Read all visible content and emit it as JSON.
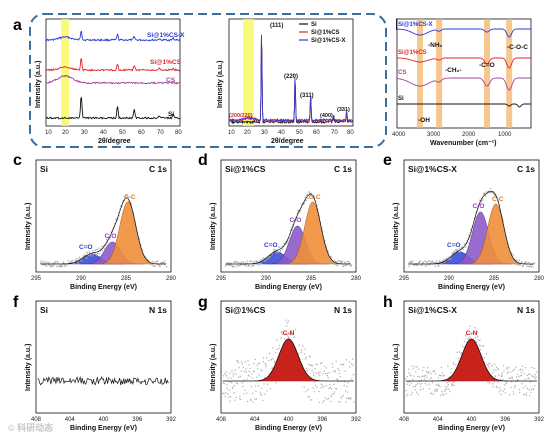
{
  "panels": {
    "a": {
      "label": "a",
      "left": {
        "xlabel": "2θ/degree",
        "ylabel": "Intensity (a.u.)",
        "xlim": [
          10,
          80
        ],
        "xticks": [
          10,
          20,
          30,
          40,
          50,
          60,
          70,
          80
        ],
        "series": [
          {
            "name": "Si@1%CS-X",
            "color": "#2b3bd6"
          },
          {
            "name": "Si@1%CS",
            "color": "#e0262b"
          },
          {
            "name": "CS",
            "color": "#a3449b"
          },
          {
            "name": "Si",
            "color": "#111111"
          }
        ],
        "highlight": [
          18,
          22
        ]
      },
      "right": {
        "xlabel": "2θ/degree",
        "ylabel": "Intensity (a.u.)",
        "xlim": [
          10,
          80
        ],
        "xticks": [
          10,
          20,
          30,
          40,
          50,
          60,
          70,
          80
        ],
        "peaks": [
          "(111)",
          "(220)",
          "(311)",
          "(400)",
          "(331)",
          "(200/220)"
        ],
        "legend": [
          {
            "name": "Si",
            "color": "#111111"
          },
          {
            "name": "Si@1%CS",
            "color": "#e0262b"
          },
          {
            "name": "Si@1%CS-X",
            "color": "#2b3bd6"
          }
        ],
        "highlight": [
          18,
          24
        ]
      }
    },
    "b": {
      "label": "b",
      "xlabel": "Wavenumber (cm⁻¹)",
      "xlim": [
        4000,
        500
      ],
      "xticks": [
        4000,
        3000,
        2000,
        1000
      ],
      "series": [
        {
          "name": "Si@1%CS-X",
          "color": "#2b3bd6"
        },
        {
          "name": "Si@1%CS",
          "color": "#e0262b"
        },
        {
          "name": "CS",
          "color": "#a3449b"
        },
        {
          "name": "Si",
          "color": "#111111"
        }
      ],
      "annotations": [
        "-NH₂",
        "-CH₂-",
        "-C=O",
        "-C-O-C",
        "-OH"
      ],
      "bands": [
        3400,
        2900,
        1650,
        1070
      ]
    },
    "xps": {
      "c": {
        "label": "c",
        "sample": "Si",
        "core": "C 1s"
      },
      "d": {
        "label": "d",
        "sample": "Si@1%CS",
        "core": "C 1s"
      },
      "e": {
        "label": "e",
        "sample": "Si@1%CS-X",
        "core": "C 1s"
      },
      "f": {
        "label": "f",
        "sample": "Si",
        "core": "N 1s"
      },
      "g": {
        "label": "g",
        "sample": "Si@1%CS",
        "core": "N 1s"
      },
      "h": {
        "label": "h",
        "sample": "Si@1%CS-X",
        "core": "N 1s"
      },
      "xlabel": "Binding Energy (eV)",
      "ylabel": "Intensity (a.u.)",
      "c1s_ticks": [
        295,
        290,
        285,
        280
      ],
      "n1s_ticks": [
        408,
        404,
        400,
        396,
        392
      ],
      "comp_labels": {
        "cc": "C-C",
        "co": "C-O",
        "ceo": "C=O",
        "cn": "C-N"
      }
    }
  },
  "watermark": "© 科研动态",
  "chart_data": [
    {
      "type": "line",
      "title": "",
      "xlabel": "2θ/degree",
      "ylabel": "Intensity (a.u.)",
      "series": [
        {
          "name": "Si@1%CS-X"
        },
        {
          "name": "Si@1%CS"
        },
        {
          "name": "CS"
        },
        {
          "name": "Si"
        }
      ],
      "xlim": [
        10,
        80
      ]
    },
    {
      "type": "line",
      "title": "",
      "xlabel": "2θ/degree",
      "ylabel": "Intensity (a.u.)",
      "series": [
        {
          "name": "Si"
        },
        {
          "name": "Si@1%CS"
        },
        {
          "name": "Si@1%CS-X"
        }
      ],
      "peaks": [
        {
          "label": "(111)",
          "x": 28.4
        },
        {
          "label": "(220)",
          "x": 47.3
        },
        {
          "label": "(311)",
          "x": 56.1
        },
        {
          "label": "(400)",
          "x": 69.1
        },
        {
          "label": "(331)",
          "x": 76.4
        },
        {
          "label": "(200/220)",
          "x": 20
        }
      ],
      "xlim": [
        10,
        80
      ]
    },
    {
      "type": "line",
      "title": "",
      "xlabel": "Wavenumber (cm⁻¹)",
      "series": [
        {
          "name": "Si@1%CS-X"
        },
        {
          "name": "Si@1%CS"
        },
        {
          "name": "CS"
        },
        {
          "name": "Si"
        }
      ],
      "xlim": [
        4000,
        500
      ]
    },
    {
      "type": "area",
      "title": "",
      "xlabel": "Binding Energy (eV)",
      "ylabel": "Intensity (a.u.)",
      "panels": [
        {
          "sample": "Si",
          "core": "C 1s",
          "components": [
            {
              "name": "C-C",
              "x": 284.8
            },
            {
              "name": "C-O",
              "x": 286.5
            },
            {
              "name": "C=O",
              "x": 288.8
            }
          ]
        },
        {
          "sample": "Si@1%CS",
          "core": "C 1s",
          "components": [
            {
              "name": "C-C",
              "x": 284.8
            },
            {
              "name": "C-O",
              "x": 286.5
            },
            {
              "name": "C=O",
              "x": 288.8
            }
          ]
        },
        {
          "sample": "Si@1%CS-X",
          "core": "C 1s",
          "components": [
            {
              "name": "C-C",
              "x": 284.8
            },
            {
              "name": "C-O",
              "x": 286.5
            },
            {
              "name": "C=O",
              "x": 288.8
            }
          ]
        },
        {
          "sample": "Si",
          "core": "N 1s",
          "components": []
        },
        {
          "sample": "Si@1%CS",
          "core": "N 1s",
          "components": [
            {
              "name": "C-N",
              "x": 400
            }
          ]
        },
        {
          "sample": "Si@1%CS-X",
          "core": "N 1s",
          "components": [
            {
              "name": "C-N",
              "x": 400
            }
          ]
        }
      ]
    }
  ]
}
